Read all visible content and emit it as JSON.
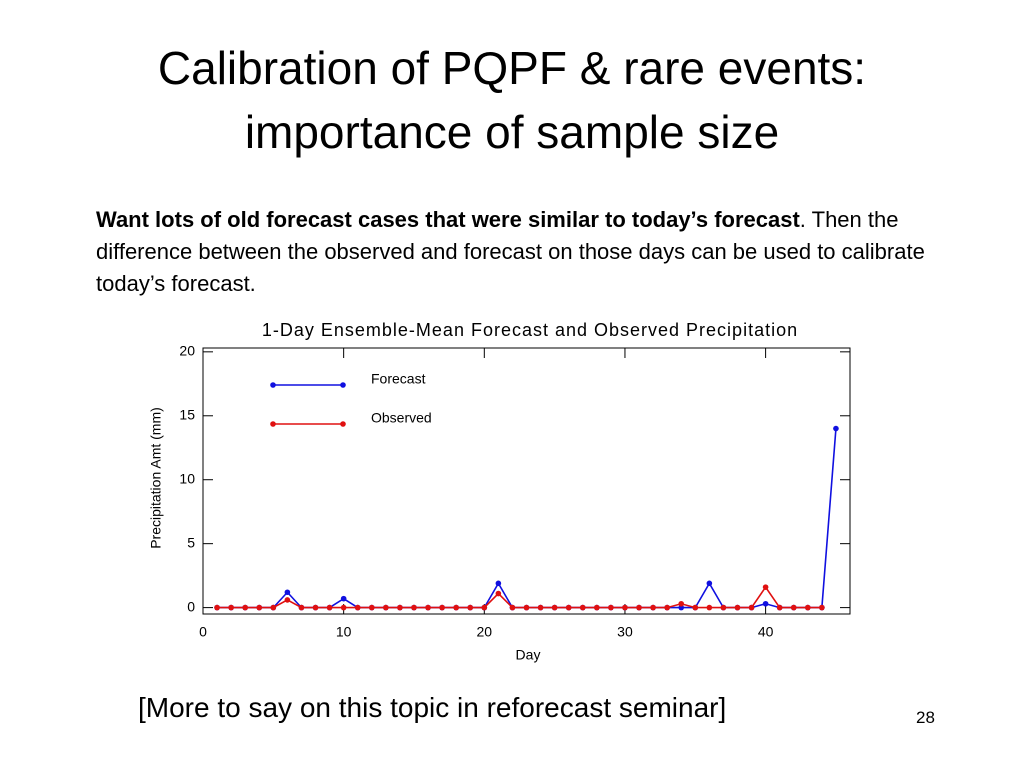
{
  "slide": {
    "title_line1": "Calibration of PQPF & rare events:",
    "title_line2": "importance of sample size",
    "body_bold": "Want lots of old forecast cases that were similar to today’s forecast",
    "body_rest": ".  Then the difference between the observed and forecast on those days can be used to calibrate today’s forecast.",
    "footer": "[More to say on this topic in reforecast seminar]",
    "page_number": "28"
  },
  "chart_data": {
    "type": "line",
    "title": "1-Day Ensemble-Mean Forecast and Observed Precipitation",
    "xlabel": "Day",
    "ylabel": "Precipitation Amt (mm)",
    "x": [
      1,
      2,
      3,
      4,
      5,
      6,
      7,
      8,
      9,
      10,
      11,
      12,
      13,
      14,
      15,
      16,
      17,
      18,
      19,
      20,
      21,
      22,
      23,
      24,
      25,
      26,
      27,
      28,
      29,
      30,
      31,
      32,
      33,
      34,
      35,
      36,
      37,
      38,
      39,
      40,
      41,
      42,
      43,
      44,
      45
    ],
    "series": [
      {
        "name": "Forecast",
        "color": "#1010e0",
        "values": [
          0,
          0,
          0,
          0,
          0,
          1.2,
          0,
          0,
          0,
          0.7,
          0,
          0,
          0,
          0,
          0,
          0,
          0,
          0,
          0,
          0,
          1.9,
          0,
          0,
          0,
          0,
          0,
          0,
          0,
          0,
          0,
          0,
          0,
          0,
          0,
          0,
          1.9,
          0,
          0,
          0,
          0.3,
          0,
          0,
          0,
          0,
          14
        ]
      },
      {
        "name": "Observed",
        "color": "#e01010",
        "values": [
          0,
          0,
          0,
          0,
          0,
          0.6,
          0,
          0,
          0,
          0,
          0,
          0,
          0,
          0,
          0,
          0,
          0,
          0,
          0,
          0,
          1.1,
          0,
          0,
          0,
          0,
          0,
          0,
          0,
          0,
          0,
          0,
          0,
          0,
          0.3,
          0,
          0,
          0,
          0,
          0,
          1.6,
          0,
          0,
          0,
          0,
          null
        ]
      }
    ],
    "xlim": [
      0,
      46
    ],
    "ylim": [
      -0.5,
      20.3
    ],
    "xticks": [
      0,
      10,
      20,
      30,
      40
    ],
    "yticks": [
      0,
      5,
      10,
      15,
      20
    ],
    "legend": "upper left"
  }
}
